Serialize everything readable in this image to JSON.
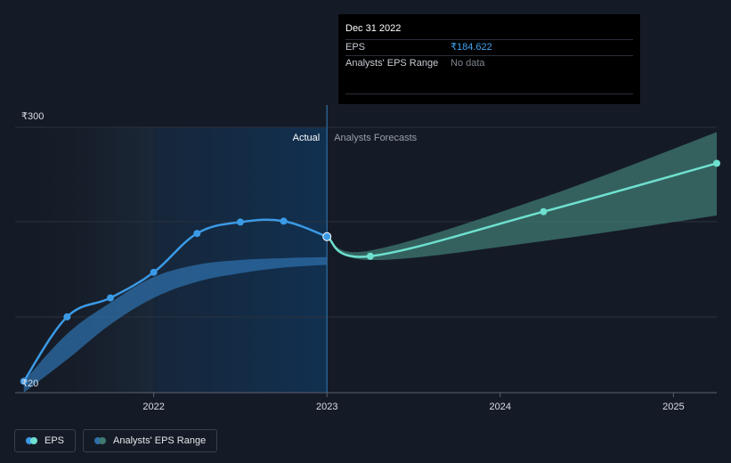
{
  "chart_data": {
    "type": "line",
    "currency_symbol": "₹",
    "y_tick_labels": [
      "₹300",
      "₹20"
    ],
    "ylim": [
      20,
      300
    ],
    "x_ticks": [
      "2022",
      "2023",
      "2024",
      "2025"
    ],
    "xlim": [
      2021.2,
      2025.25
    ],
    "grid": true,
    "divider_label_left": "Actual",
    "divider_label_right": "Analysts Forecasts",
    "series": [
      {
        "name": "EPS",
        "color": "#3b9ae6",
        "points": [
          {
            "x": 2021.25,
            "y": 32
          },
          {
            "x": 2021.5,
            "y": 100
          },
          {
            "x": 2021.75,
            "y": 120
          },
          {
            "x": 2022.0,
            "y": 147
          },
          {
            "x": 2022.25,
            "y": 188
          },
          {
            "x": 2022.5,
            "y": 200
          },
          {
            "x": 2022.75,
            "y": 201
          },
          {
            "x": 2023.0,
            "y": 184.622
          }
        ]
      },
      {
        "name": "EPS Forecast",
        "color": "#6ee0cf",
        "points": [
          {
            "x": 2023.0,
            "y": 184.622
          },
          {
            "x": 2023.25,
            "y": 164
          },
          {
            "x": 2024.25,
            "y": 211
          },
          {
            "x": 2025.25,
            "y": 262
          }
        ]
      }
    ],
    "actual_range": {
      "name": "Analysts' EPS Range",
      "color": "#2e6ea8",
      "x": [
        2021.25,
        2021.5,
        2021.75,
        2022.0,
        2022.25,
        2022.5,
        2022.75,
        2023.0
      ],
      "low": [
        20,
        55,
        92,
        120,
        137,
        146,
        152,
        155
      ],
      "high": [
        32,
        82,
        115,
        142,
        155,
        160,
        162,
        163
      ]
    },
    "forecast_range": {
      "color": "#3f7a72",
      "x": [
        2023.0,
        2023.25,
        2024.25,
        2025.25
      ],
      "low": [
        184.622,
        160,
        180,
        207
      ],
      "high": [
        184.622,
        170,
        226,
        295
      ]
    }
  },
  "tooltip": {
    "date": "Dec 31 2022",
    "eps_label": "EPS",
    "eps_value": "₹184.622",
    "range_label": "Analysts' EPS Range",
    "range_value": "No data"
  },
  "legend": {
    "eps_label": "EPS",
    "range_label": "Analysts' EPS Range",
    "eps_colors": [
      "#3b9ae6",
      "#6ee0cf"
    ],
    "range_colors": [
      "#2e6ea8",
      "#3f7a72"
    ]
  }
}
